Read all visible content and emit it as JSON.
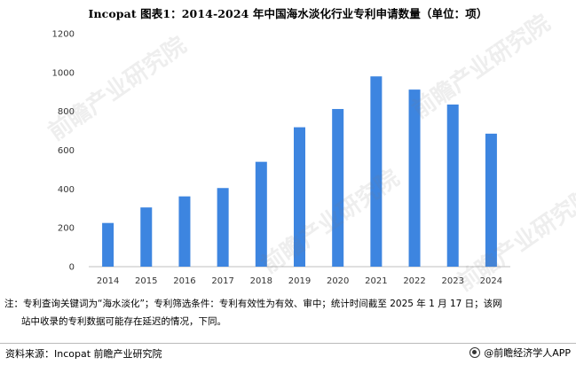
{
  "title": "Incopat  图表1：2014-2024 年中国海水淡化行业专利申请数量（单位：项）",
  "chart_data": {
    "type": "bar",
    "categories": [
      "2014",
      "2015",
      "2016",
      "2017",
      "2018",
      "2019",
      "2020",
      "2021",
      "2022",
      "2023",
      "2024"
    ],
    "values": [
      225,
      305,
      362,
      405,
      540,
      718,
      812,
      980,
      912,
      835,
      685
    ],
    "ylim": [
      0,
      1200
    ],
    "yticks": [
      0,
      200,
      400,
      600,
      800,
      1000,
      1200
    ],
    "grid": false,
    "bar_color": "#3d85e0"
  },
  "notes": {
    "line1": "注：专利查询关键词为“海水淡化”；专利筛选条件：专利有效性为有效、审中；统计时间截至 2025 年 1 月 17 日；该网",
    "line2": "站中收录的专利数据可能存在延迟的情况，下同。"
  },
  "source": "资料来源：Incopat 前瞻产业研究院",
  "brand": "@前瞻经济学人APP",
  "watermark": "前瞻产业研究院"
}
